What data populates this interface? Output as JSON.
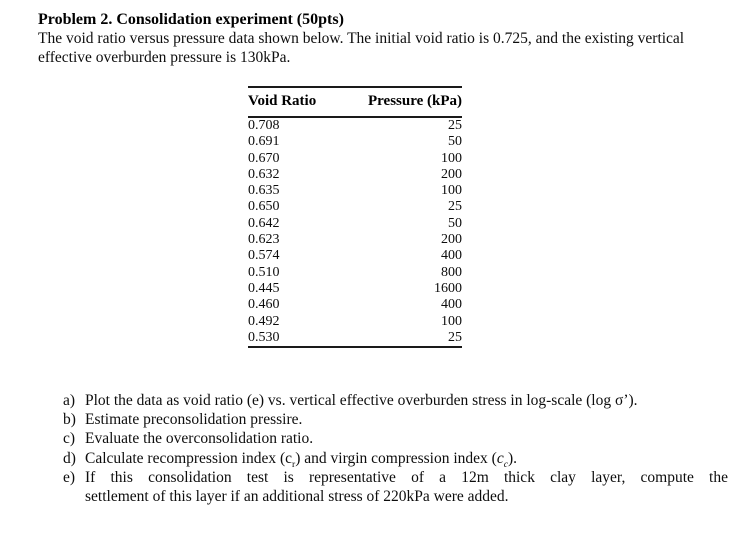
{
  "page": {
    "title": "Problem 2. Consolidation experiment (50pts)",
    "intro": "The void ratio versus pressure data shown below. The initial void ratio is 0.725, and the existing vertical effective overburden pressure is 130kPa."
  },
  "table": {
    "headers": {
      "void_ratio": "Void Ratio",
      "pressure": "Pressure (kPa)"
    },
    "rows": [
      {
        "e": "0.708",
        "p": "25"
      },
      {
        "e": "0.691",
        "p": "50"
      },
      {
        "e": "0.670",
        "p": "100"
      },
      {
        "e": "0.632",
        "p": "200"
      },
      {
        "e": "0.635",
        "p": "100"
      },
      {
        "e": "0.650",
        "p": "25"
      },
      {
        "e": "0.642",
        "p": "50"
      },
      {
        "e": "0.623",
        "p": "200"
      },
      {
        "e": "0.574",
        "p": "400"
      },
      {
        "e": "0.510",
        "p": "800"
      },
      {
        "e": "0.445",
        "p": "1600"
      },
      {
        "e": "0.460",
        "p": "400"
      },
      {
        "e": "0.492",
        "p": "100"
      },
      {
        "e": "0.530",
        "p": "25"
      }
    ]
  },
  "questions": {
    "items": [
      {
        "marker": "a)",
        "text": "Plot the data as void ratio (e) vs. vertical effective overburden stress in log-scale (log σ’)."
      },
      {
        "marker": "b)",
        "text": "Estimate preconsolidation pressire."
      },
      {
        "marker": "c)",
        "text": "Evaluate the overconsolidation ratio."
      },
      {
        "marker": "d)",
        "parts": {
          "p1": "Calculate recompression index (c",
          "s1": "r",
          "p2": ") and virgin compression index (",
          "p3": "c",
          "s2": "c",
          "p4": ")."
        }
      },
      {
        "marker": "e)",
        "line1": "If this consolidation test is representative of a 12m thick clay layer, compute the",
        "line2": "settlement of this layer if an additional stress of 220kPa were added."
      }
    ]
  }
}
